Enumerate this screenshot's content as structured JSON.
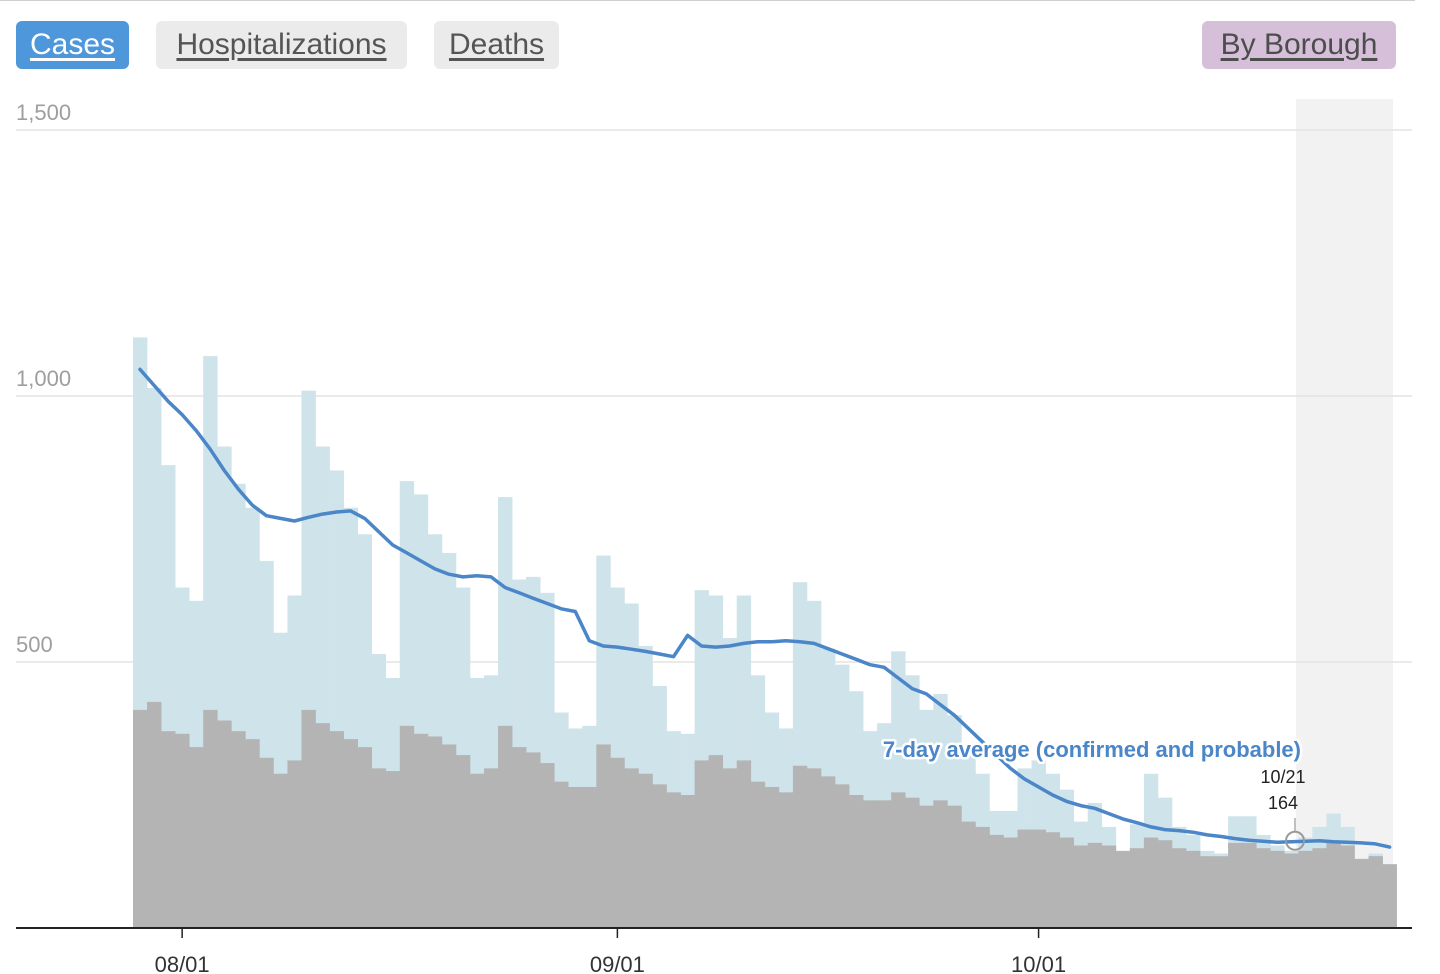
{
  "tabs": {
    "cases": "Cases",
    "hospitalizations": "Hospitalizations",
    "deaths": "Deaths",
    "by_borough": "By Borough"
  },
  "colors": {
    "tab_active": "#4f97db",
    "tab_inactive": "#ebebeb",
    "tab_borough": "#d5bfd9",
    "bar_total": "#cfe3ea",
    "bar_confirmed": "#b4b4b4",
    "average_line": "#4a86c8",
    "gridline": "#e3e3e3",
    "highlight": "#f2f2f2"
  },
  "chart_data": {
    "type": "bar",
    "x_labels": [
      "08/01",
      "09/01",
      "10/01"
    ],
    "y_ticks": [
      "1,500",
      "1,000",
      "500"
    ],
    "y_tick_values": [
      1500,
      1000,
      500
    ],
    "ylim": [
      0,
      1500
    ],
    "grid": true,
    "x_start_date": "07/29",
    "total_values": [
      1110,
      1015,
      870,
      640,
      615,
      1075,
      905,
      835,
      790,
      690,
      555,
      625,
      1010,
      905,
      860,
      790,
      740,
      515,
      470,
      840,
      815,
      740,
      705,
      640,
      470,
      475,
      810,
      655,
      660,
      630,
      405,
      375,
      380,
      700,
      640,
      610,
      530,
      455,
      370,
      365,
      635,
      625,
      545,
      625,
      475,
      405,
      375,
      650,
      615,
      525,
      495,
      445,
      370,
      385,
      520,
      475,
      410,
      440,
      400,
      330,
      290,
      220,
      220,
      300,
      315,
      290,
      260,
      200,
      235,
      190,
      140,
      195,
      290,
      245,
      190,
      175,
      145,
      140,
      210,
      210,
      175,
      155,
      145,
      170,
      190,
      215,
      190,
      100,
      140,
      100
    ],
    "gray_values": [
      410,
      425,
      370,
      365,
      340,
      410,
      390,
      370,
      355,
      320,
      290,
      315,
      410,
      385,
      370,
      355,
      340,
      300,
      295,
      380,
      365,
      360,
      345,
      325,
      290,
      300,
      380,
      340,
      330,
      310,
      275,
      265,
      265,
      345,
      320,
      300,
      290,
      270,
      255,
      250,
      315,
      325,
      300,
      315,
      275,
      265,
      255,
      305,
      300,
      285,
      270,
      250,
      240,
      240,
      255,
      245,
      230,
      240,
      230,
      200,
      190,
      175,
      170,
      185,
      185,
      180,
      170,
      155,
      160,
      155,
      145,
      150,
      170,
      165,
      150,
      145,
      135,
      135,
      160,
      160,
      150,
      145,
      140,
      145,
      150,
      160,
      155,
      130,
      135,
      120
    ],
    "series": [
      {
        "name": "7-day average (confirmed and probable)",
        "values": [
          1050,
          1020,
          990,
          965,
          935,
          900,
          860,
          825,
          795,
          775,
          770,
          765,
          772,
          778,
          782,
          784,
          770,
          745,
          720,
          705,
          690,
          675,
          665,
          660,
          662,
          660,
          640,
          630,
          620,
          610,
          600,
          595,
          540,
          530,
          528,
          524,
          520,
          515,
          510,
          550,
          530,
          528,
          530,
          535,
          538,
          538,
          540,
          538,
          535,
          525,
          515,
          505,
          495,
          490,
          470,
          450,
          440,
          420,
          400,
          375,
          350,
          325,
          300,
          280,
          265,
          250,
          238,
          230,
          225,
          215,
          205,
          198,
          190,
          185,
          183,
          180,
          175,
          172,
          168,
          165,
          163,
          161,
          162,
          163,
          164,
          162,
          161,
          160,
          158,
          152
        ]
      }
    ],
    "highlight": {
      "date": "10/21",
      "value": "164"
    }
  }
}
